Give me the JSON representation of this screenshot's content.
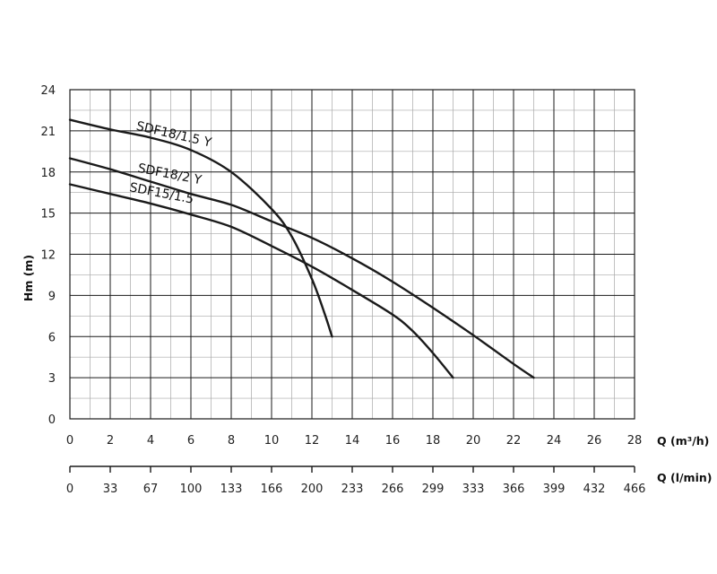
{
  "chart_data": {
    "type": "line",
    "xlabel": "Q (m³/h)",
    "xlabel_secondary": "Q (l/min)",
    "ylabel": "Hm (m)",
    "xlim": [
      0,
      28
    ],
    "ylim": [
      0,
      24
    ],
    "x_ticks": [
      "0",
      "2",
      "4",
      "6",
      "8",
      "10",
      "12",
      "14",
      "16",
      "18",
      "20",
      "22",
      "24",
      "26",
      "28"
    ],
    "x_ticks_secondary": [
      "0",
      "33",
      "67",
      "100",
      "133",
      "166",
      "200",
      "233",
      "266",
      "299",
      "333",
      "366",
      "399",
      "432",
      "466"
    ],
    "y_ticks": [
      "0",
      "3",
      "6",
      "9",
      "12",
      "15",
      "18",
      "21",
      "24"
    ],
    "grid": true,
    "series": [
      {
        "name": "SDF18/1.5 Y",
        "points": [
          [
            0,
            21.8
          ],
          [
            2,
            21.1
          ],
          [
            4,
            20.5
          ],
          [
            6,
            19.6
          ],
          [
            8,
            18.0
          ],
          [
            10,
            15.3
          ],
          [
            11,
            13.3
          ],
          [
            12,
            10.2
          ],
          [
            12.6,
            7.8
          ],
          [
            13,
            6.0
          ]
        ]
      },
      {
        "name": "SDF18/2 Y",
        "points": [
          [
            0,
            19.0
          ],
          [
            2,
            18.2
          ],
          [
            4,
            17.3
          ],
          [
            6,
            16.4
          ],
          [
            8,
            15.6
          ],
          [
            10,
            14.4
          ],
          [
            12,
            13.2
          ],
          [
            14,
            11.7
          ],
          [
            16,
            10.0
          ],
          [
            18,
            8.1
          ],
          [
            20,
            6.1
          ],
          [
            22,
            4.0
          ],
          [
            23,
            3.0
          ]
        ]
      },
      {
        "name": "SDF15/1.5",
        "points": [
          [
            0,
            17.1
          ],
          [
            2,
            16.4
          ],
          [
            4,
            15.7
          ],
          [
            6,
            14.9
          ],
          [
            8,
            14.0
          ],
          [
            10,
            12.6
          ],
          [
            12,
            11.1
          ],
          [
            14,
            9.4
          ],
          [
            16,
            7.6
          ],
          [
            17,
            6.4
          ],
          [
            18,
            4.8
          ],
          [
            19,
            3.0
          ]
        ]
      }
    ]
  }
}
